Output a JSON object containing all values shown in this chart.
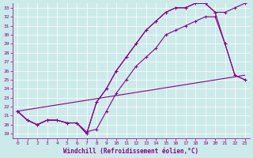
{
  "background_color": "#cceaea",
  "line_color": "#880088",
  "xlabel": "Windchill (Refroidissement éolien,°C)",
  "xlim": [
    -0.5,
    23.5
  ],
  "ylim": [
    18.5,
    33.5
  ],
  "xticks": [
    0,
    1,
    2,
    3,
    4,
    5,
    6,
    7,
    8,
    9,
    10,
    11,
    12,
    13,
    14,
    15,
    16,
    17,
    18,
    19,
    20,
    21,
    22,
    23
  ],
  "yticks": [
    19,
    20,
    21,
    22,
    23,
    24,
    25,
    26,
    27,
    28,
    29,
    30,
    31,
    32,
    33
  ],
  "series": [
    {
      "x": [
        0,
        23
      ],
      "y": [
        21.5,
        25.5
      ]
    },
    {
      "x": [
        0,
        1,
        2,
        3,
        4,
        5,
        6,
        7,
        8,
        9,
        10,
        11,
        12,
        13,
        14,
        15,
        16,
        17,
        18,
        19,
        20,
        21,
        22,
        23
      ],
      "y": [
        21.5,
        20.5,
        20.0,
        20.5,
        20.5,
        20.2,
        20.2,
        19.2,
        19.5,
        21.5,
        23.5,
        25.0,
        26.5,
        27.5,
        28.5,
        30.0,
        30.5,
        31.0,
        31.5,
        32.0,
        32.0,
        29.0,
        25.5,
        25.0
      ]
    },
    {
      "x": [
        0,
        1,
        2,
        3,
        4,
        5,
        6,
        7,
        8,
        9,
        10,
        11,
        12,
        13,
        14,
        15,
        16,
        17,
        18,
        19,
        20,
        21,
        22,
        23
      ],
      "y": [
        21.5,
        20.5,
        20.0,
        20.5,
        20.5,
        20.2,
        20.2,
        19.0,
        22.5,
        24.0,
        26.0,
        27.5,
        29.0,
        30.5,
        31.5,
        32.5,
        33.0,
        33.0,
        33.5,
        33.5,
        32.5,
        32.5,
        33.0,
        33.5
      ]
    },
    {
      "x": [
        0,
        1,
        2,
        3,
        4,
        5,
        6,
        7,
        8,
        9,
        10,
        11,
        12,
        13,
        14,
        15,
        16,
        17,
        18,
        19,
        20,
        21,
        22,
        23
      ],
      "y": [
        21.5,
        20.5,
        20.0,
        20.5,
        20.5,
        20.2,
        20.2,
        19.0,
        22.5,
        24.0,
        26.0,
        27.5,
        29.0,
        30.5,
        31.5,
        32.5,
        33.0,
        33.0,
        33.5,
        33.5,
        32.5,
        29.0,
        25.5,
        25.0
      ]
    }
  ],
  "marker": "+",
  "markersize": 3,
  "linewidth": 0.8
}
